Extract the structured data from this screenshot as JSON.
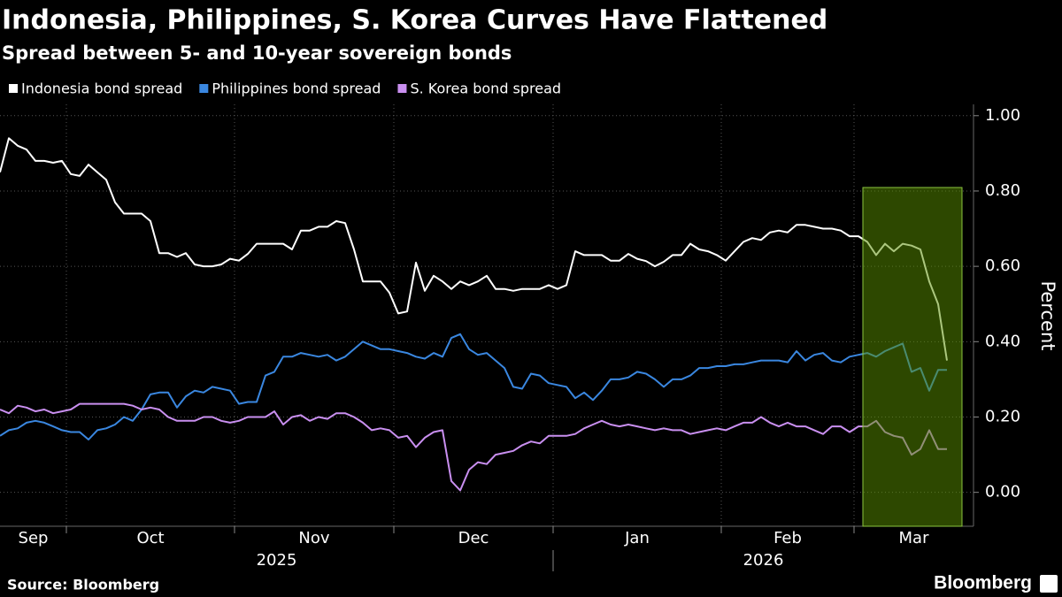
{
  "chart_data": {
    "type": "line",
    "title": "Indonesia, Philippines, S. Korea Curves Have Flattened",
    "subtitle": "Spread between 5- and 10-year sovereign bonds",
    "y_label": "Percent",
    "categories": [
      "Sep",
      null,
      null,
      null,
      null,
      null,
      null,
      null,
      "Oct",
      null,
      null,
      null,
      null,
      null,
      null,
      null,
      null,
      null,
      null,
      null,
      null,
      null,
      null,
      null,
      null,
      null,
      null,
      "Nov",
      null,
      null,
      null,
      null,
      null,
      null,
      null,
      null,
      null,
      null,
      null,
      null,
      null,
      null,
      null,
      null,
      null,
      "Dec",
      null,
      null,
      null,
      null,
      null,
      null,
      null,
      null,
      null,
      null,
      null,
      null,
      null,
      null,
      null,
      null,
      null,
      "Jan",
      null,
      null,
      null,
      null,
      null,
      null,
      null,
      null,
      null,
      null,
      null,
      null,
      null,
      null,
      null,
      null,
      null,
      null,
      "Feb",
      null,
      null,
      null,
      null,
      null,
      null,
      null,
      null,
      null,
      null,
      null,
      null,
      null,
      null,
      "Mar",
      null,
      null,
      null,
      null,
      null,
      null,
      null,
      null,
      null,
      null
    ],
    "year_categories": [
      "2025",
      null,
      null,
      null,
      null,
      null,
      null,
      null,
      null,
      null,
      null,
      null,
      null,
      null,
      null,
      null,
      null,
      null,
      null,
      null,
      null,
      null,
      null,
      null,
      null,
      null,
      null,
      null,
      null,
      null,
      null,
      null,
      null,
      null,
      null,
      null,
      null,
      null,
      null,
      null,
      null,
      null,
      null,
      null,
      null,
      null,
      null,
      null,
      null,
      null,
      null,
      null,
      null,
      null,
      null,
      null,
      null,
      null,
      null,
      null,
      null,
      null,
      null,
      "2026",
      null,
      null,
      null,
      null,
      null,
      null,
      null,
      null,
      null,
      null,
      null,
      null,
      null,
      null,
      null,
      null,
      null,
      null,
      null,
      null,
      null,
      null,
      null,
      null,
      null,
      null,
      null,
      null,
      null,
      null,
      null,
      null,
      null,
      null,
      null,
      null,
      null,
      null,
      null,
      null,
      null,
      null,
      null,
      null
    ],
    "series": [
      {
        "name": "Indonesia bond spread",
        "color": "#ffffff",
        "values": [
          0.85,
          0.94,
          0.92,
          0.91,
          0.88,
          0.88,
          0.875,
          0.88,
          0.845,
          0.84,
          0.87,
          0.85,
          0.83,
          0.77,
          0.74,
          0.74,
          0.74,
          0.72,
          0.635,
          0.635,
          0.625,
          0.635,
          0.605,
          0.6,
          0.6,
          0.605,
          0.62,
          0.615,
          0.633,
          0.66,
          0.66,
          0.66,
          0.66,
          0.645,
          0.695,
          0.695,
          0.705,
          0.705,
          0.72,
          0.715,
          0.645,
          0.56,
          0.56,
          0.56,
          0.53,
          0.475,
          0.48,
          0.61,
          0.535,
          0.575,
          0.56,
          0.54,
          0.56,
          0.55,
          0.56,
          0.575,
          0.54,
          0.54,
          0.535,
          0.54,
          0.54,
          0.54,
          0.55,
          0.54,
          0.55,
          0.64,
          0.63,
          0.63,
          0.63,
          0.615,
          0.615,
          0.633,
          0.62,
          0.614,
          0.6,
          0.612,
          0.63,
          0.63,
          0.66,
          0.645,
          0.64,
          0.63,
          0.615,
          0.64,
          0.665,
          0.675,
          0.67,
          0.69,
          0.695,
          0.69,
          0.71,
          0.71,
          0.705,
          0.7,
          0.7,
          0.695,
          0.68,
          0.68,
          0.665,
          0.63,
          0.66,
          0.64,
          0.66,
          0.655,
          0.645,
          0.56,
          0.5,
          0.35
        ]
      },
      {
        "name": "Philippines bond spread",
        "color": "#3a87e0",
        "values": [
          0.15,
          0.165,
          0.17,
          0.185,
          0.19,
          0.185,
          0.175,
          0.165,
          0.16,
          0.16,
          0.14,
          0.165,
          0.17,
          0.18,
          0.2,
          0.19,
          0.22,
          0.26,
          0.265,
          0.265,
          0.225,
          0.255,
          0.27,
          0.265,
          0.28,
          0.275,
          0.27,
          0.235,
          0.24,
          0.24,
          0.31,
          0.32,
          0.36,
          0.36,
          0.37,
          0.365,
          0.36,
          0.365,
          0.35,
          0.36,
          0.38,
          0.4,
          0.39,
          0.38,
          0.38,
          0.375,
          0.37,
          0.36,
          0.355,
          0.37,
          0.36,
          0.41,
          0.42,
          0.38,
          0.365,
          0.37,
          0.35,
          0.33,
          0.28,
          0.275,
          0.315,
          0.31,
          0.29,
          0.285,
          0.28,
          0.25,
          0.265,
          0.245,
          0.27,
          0.3,
          0.3,
          0.305,
          0.32,
          0.315,
          0.3,
          0.28,
          0.3,
          0.3,
          0.31,
          0.33,
          0.33,
          0.335,
          0.335,
          0.34,
          0.34,
          0.345,
          0.35,
          0.35,
          0.35,
          0.345,
          0.375,
          0.35,
          0.365,
          0.37,
          0.35,
          0.345,
          0.36,
          0.365,
          0.37,
          0.36,
          0.375,
          0.385,
          0.395,
          0.32,
          0.33,
          0.27,
          0.325,
          0.325
        ]
      },
      {
        "name": "S. Korea bond spread",
        "color": "#c98ff0",
        "values": [
          0.22,
          0.21,
          0.23,
          0.225,
          0.215,
          0.22,
          0.21,
          0.215,
          0.22,
          0.235,
          0.235,
          0.235,
          0.235,
          0.235,
          0.235,
          0.23,
          0.22,
          0.225,
          0.22,
          0.2,
          0.19,
          0.19,
          0.19,
          0.2,
          0.2,
          0.19,
          0.185,
          0.19,
          0.2,
          0.2,
          0.2,
          0.215,
          0.18,
          0.2,
          0.205,
          0.19,
          0.2,
          0.195,
          0.21,
          0.21,
          0.2,
          0.185,
          0.165,
          0.17,
          0.165,
          0.145,
          0.15,
          0.12,
          0.145,
          0.16,
          0.165,
          0.03,
          0.005,
          0.06,
          0.08,
          0.075,
          0.1,
          0.105,
          0.11,
          0.125,
          0.135,
          0.13,
          0.15,
          0.15,
          0.15,
          0.155,
          0.17,
          0.18,
          0.19,
          0.18,
          0.175,
          0.18,
          0.175,
          0.17,
          0.165,
          0.17,
          0.165,
          0.165,
          0.155,
          0.16,
          0.165,
          0.17,
          0.165,
          0.175,
          0.185,
          0.185,
          0.2,
          0.185,
          0.175,
          0.185,
          0.175,
          0.175,
          0.165,
          0.155,
          0.175,
          0.175,
          0.16,
          0.175,
          0.175,
          0.19,
          0.16,
          0.15,
          0.145,
          0.1,
          0.115,
          0.165,
          0.115,
          0.115
        ]
      }
    ],
    "ylim": [
      -0.09,
      1.03
    ],
    "yticks": [
      {
        "value": 0,
        "label": "0.00"
      },
      {
        "value": 0.2,
        "label": "0.20"
      },
      {
        "value": 0.4,
        "label": "0.40"
      },
      {
        "value": 0.6,
        "label": "0.60"
      },
      {
        "value": 0.8,
        "label": "0.80"
      },
      {
        "value": 1,
        "label": "1.00"
      }
    ],
    "grid": true,
    "legend": "top-left"
  },
  "footer": {
    "source": "Source: Bloomberg",
    "logo": "Bloomberg"
  }
}
